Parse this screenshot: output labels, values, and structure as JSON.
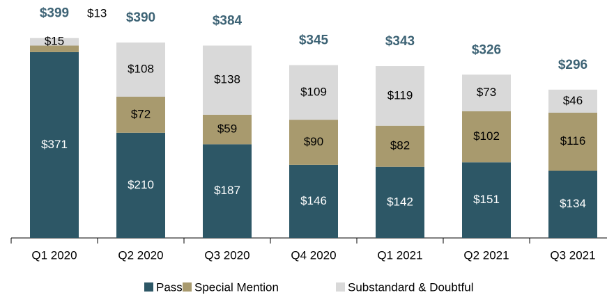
{
  "chart_data": {
    "type": "stacked_bar",
    "categories": [
      "Q1 2020",
      "Q2 2020",
      "Q3 2020",
      "Q4 2020",
      "Q1 2021",
      "Q2 2021",
      "Q3 2021"
    ],
    "series": [
      {
        "name": "Pass",
        "color": "#2d5766",
        "values": [
          371,
          210,
          187,
          146,
          142,
          151,
          134
        ],
        "value_labels": [
          "$371",
          "$210",
          "$187",
          "$146",
          "$142",
          "$151",
          "$134"
        ]
      },
      {
        "name": "Special Mention",
        "color": "#a89a6e",
        "values": [
          13,
          72,
          59,
          90,
          82,
          102,
          116
        ],
        "value_labels": [
          "$13",
          "$72",
          "$59",
          "$90",
          "$82",
          "$102",
          "$116"
        ]
      },
      {
        "name": "Substandard & Doubtful",
        "color": "#d9d9d9",
        "values": [
          15,
          108,
          138,
          109,
          119,
          73,
          46
        ],
        "value_labels": [
          "$15",
          "$108",
          "$138",
          "$109",
          "$119",
          "$73",
          "$46"
        ]
      }
    ],
    "totals": [
      399,
      390,
      384,
      345,
      343,
      326,
      296
    ],
    "total_labels": [
      "$399",
      "$390",
      "$384",
      "$345",
      "$343",
      "$326",
      "$296"
    ],
    "legend": "bottom"
  }
}
